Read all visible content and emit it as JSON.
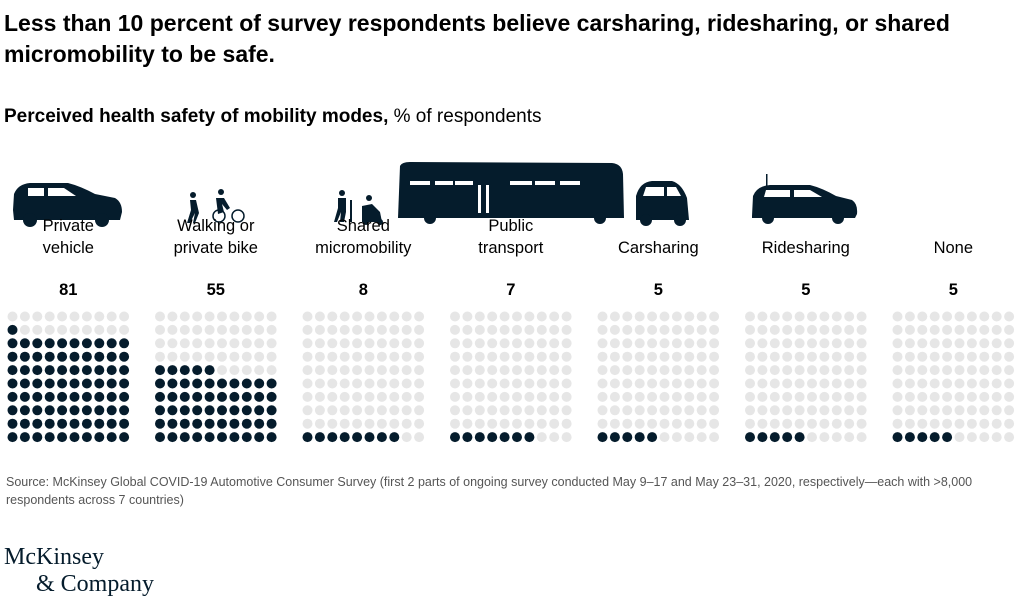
{
  "title": "Less than 10 percent of survey respondents believe carsharing, ridesharing, or shared micromobility to be safe.",
  "subtitle_bold": "Perceived health safety of mobility modes,",
  "subtitle_rest": " % of respondents",
  "chart_data": {
    "type": "waffle",
    "unit": "% of respondents",
    "grid": "10x10 dots, filled from bottom-left",
    "categories": [
      "Private vehicle",
      "Walking or private bike",
      "Shared micromobility",
      "Public transport",
      "Carsharing",
      "Ridesharing",
      "None"
    ],
    "label_lines": [
      [
        "Private",
        "vehicle"
      ],
      [
        "Walking or",
        "private bike"
      ],
      [
        "Shared",
        "micromobility"
      ],
      [
        "Public",
        "transport"
      ],
      [
        "Carsharing"
      ],
      [
        "Ridesharing"
      ],
      [
        "None"
      ]
    ],
    "values": [
      81,
      55,
      8,
      7,
      5,
      5,
      5
    ],
    "colors": {
      "filled": "#051c2c",
      "empty": "#e6e6e6"
    }
  },
  "source": "Source: McKinsey Global COVID-19 Automotive Consumer Survey (first 2 parts of ongoing survey conducted May 9–17 and May 23–31, 2020, respectively—each with >8,000 respondents across 7 countries)",
  "logo": {
    "line1": "McKinsey",
    "line2": "& Company"
  }
}
